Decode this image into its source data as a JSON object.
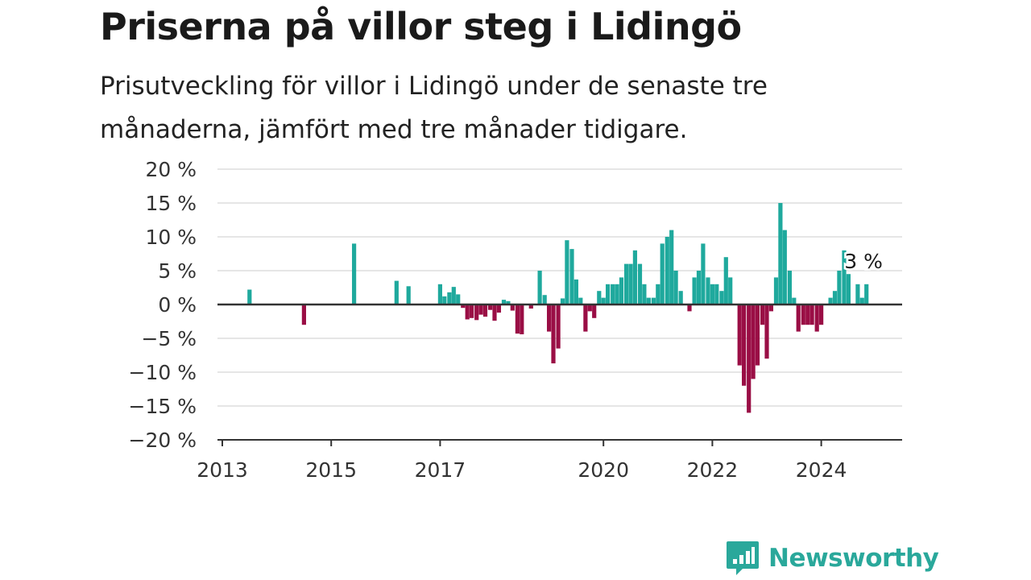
{
  "header": {
    "title": "Priserna på villor steg i Lidingö",
    "subtitle": "Prisutveckling för villor i Lidingö under de senaste tre månaderna, jämfört med tre månader tidigare."
  },
  "brand": {
    "name": "Newsworthy",
    "icon": "newsworthy-logo-icon",
    "color": "#2aa89b"
  },
  "chart_data": {
    "type": "bar",
    "title": "Priserna på villor steg i Lidingö",
    "subtitle": "Prisutveckling för villor i Lidingö under de senaste tre månaderna, jämfört med tre månader tidigare.",
    "ylim": [
      -20,
      20
    ],
    "xlim": [
      2013,
      2025.6
    ],
    "yticks": [
      20,
      15,
      10,
      5,
      0,
      -5,
      -10,
      -15,
      -20
    ],
    "ytick_labels": [
      "20 %",
      "15 %",
      "10 %",
      "5 %",
      "0 %",
      "−5 %",
      "−10 %",
      "−15 %",
      "−20 %"
    ],
    "xticks": [
      2013,
      2015,
      2017,
      2020,
      2022,
      2024
    ],
    "xtick_labels": [
      "2013",
      "2015",
      "2017",
      "2020",
      "2022",
      "2024"
    ],
    "grid": true,
    "colors": {
      "positive": "#1fa99d",
      "negative": "#9a0e45"
    },
    "annotation": {
      "text": "3 %",
      "x": 2024.75,
      "y": 3
    },
    "points": [
      {
        "x": 2013.5,
        "y": 2.2
      },
      {
        "x": 2014.5,
        "y": -3
      },
      {
        "x": 2015.42,
        "y": 9
      },
      {
        "x": 2016.2,
        "y": 3.5
      },
      {
        "x": 2016.42,
        "y": 2.7
      },
      {
        "x": 2017.0,
        "y": 3
      },
      {
        "x": 2017.08,
        "y": 1.2
      },
      {
        "x": 2017.17,
        "y": 1.8
      },
      {
        "x": 2017.25,
        "y": 2.6
      },
      {
        "x": 2017.33,
        "y": 1.5
      },
      {
        "x": 2017.42,
        "y": -0.5
      },
      {
        "x": 2017.5,
        "y": -2.2
      },
      {
        "x": 2017.58,
        "y": -2
      },
      {
        "x": 2017.67,
        "y": -2.3
      },
      {
        "x": 2017.75,
        "y": -1.5
      },
      {
        "x": 2017.83,
        "y": -1.8
      },
      {
        "x": 2017.92,
        "y": -0.8
      },
      {
        "x": 2018.0,
        "y": -2.4
      },
      {
        "x": 2018.08,
        "y": -1.2
      },
      {
        "x": 2018.17,
        "y": 0.7
      },
      {
        "x": 2018.25,
        "y": 0.5
      },
      {
        "x": 2018.33,
        "y": -0.9
      },
      {
        "x": 2018.42,
        "y": -4.3
      },
      {
        "x": 2018.5,
        "y": -4.4
      },
      {
        "x": 2018.67,
        "y": -0.6
      },
      {
        "x": 2018.83,
        "y": 5
      },
      {
        "x": 2018.92,
        "y": 1.4
      },
      {
        "x": 2019.0,
        "y": -4
      },
      {
        "x": 2019.08,
        "y": -8.7
      },
      {
        "x": 2019.17,
        "y": -6.5
      },
      {
        "x": 2019.25,
        "y": 0.9
      },
      {
        "x": 2019.33,
        "y": 9.5
      },
      {
        "x": 2019.42,
        "y": 8.2
      },
      {
        "x": 2019.5,
        "y": 3.7
      },
      {
        "x": 2019.58,
        "y": 1
      },
      {
        "x": 2019.67,
        "y": -4
      },
      {
        "x": 2019.75,
        "y": -1
      },
      {
        "x": 2019.83,
        "y": -2
      },
      {
        "x": 2019.92,
        "y": 2
      },
      {
        "x": 2020.0,
        "y": 1
      },
      {
        "x": 2020.08,
        "y": 3
      },
      {
        "x": 2020.17,
        "y": 3
      },
      {
        "x": 2020.25,
        "y": 3
      },
      {
        "x": 2020.33,
        "y": 4
      },
      {
        "x": 2020.42,
        "y": 6
      },
      {
        "x": 2020.5,
        "y": 6
      },
      {
        "x": 2020.58,
        "y": 8
      },
      {
        "x": 2020.67,
        "y": 6
      },
      {
        "x": 2020.75,
        "y": 3
      },
      {
        "x": 2020.83,
        "y": 1
      },
      {
        "x": 2020.92,
        "y": 1
      },
      {
        "x": 2021.0,
        "y": 3
      },
      {
        "x": 2021.08,
        "y": 9
      },
      {
        "x": 2021.17,
        "y": 10
      },
      {
        "x": 2021.25,
        "y": 11
      },
      {
        "x": 2021.33,
        "y": 5
      },
      {
        "x": 2021.42,
        "y": 2
      },
      {
        "x": 2021.58,
        "y": -1
      },
      {
        "x": 2021.67,
        "y": 4
      },
      {
        "x": 2021.75,
        "y": 5
      },
      {
        "x": 2021.83,
        "y": 9
      },
      {
        "x": 2021.92,
        "y": 4
      },
      {
        "x": 2022.0,
        "y": 3
      },
      {
        "x": 2022.08,
        "y": 3
      },
      {
        "x": 2022.17,
        "y": 2
      },
      {
        "x": 2022.25,
        "y": 7
      },
      {
        "x": 2022.33,
        "y": 4
      },
      {
        "x": 2022.5,
        "y": -9
      },
      {
        "x": 2022.58,
        "y": -12
      },
      {
        "x": 2022.67,
        "y": -16
      },
      {
        "x": 2022.75,
        "y": -11
      },
      {
        "x": 2022.83,
        "y": -9
      },
      {
        "x": 2022.92,
        "y": -3
      },
      {
        "x": 2023.0,
        "y": -8
      },
      {
        "x": 2023.08,
        "y": -1
      },
      {
        "x": 2023.17,
        "y": 4
      },
      {
        "x": 2023.25,
        "y": 15
      },
      {
        "x": 2023.33,
        "y": 11
      },
      {
        "x": 2023.42,
        "y": 5
      },
      {
        "x": 2023.5,
        "y": 1
      },
      {
        "x": 2023.58,
        "y": -4
      },
      {
        "x": 2023.67,
        "y": -3
      },
      {
        "x": 2023.75,
        "y": -3
      },
      {
        "x": 2023.83,
        "y": -3
      },
      {
        "x": 2023.92,
        "y": -4
      },
      {
        "x": 2024.0,
        "y": -3
      },
      {
        "x": 2024.17,
        "y": 1
      },
      {
        "x": 2024.25,
        "y": 2
      },
      {
        "x": 2024.33,
        "y": 5
      },
      {
        "x": 2024.42,
        "y": 8
      },
      {
        "x": 2024.5,
        "y": 4.5
      },
      {
        "x": 2024.67,
        "y": 3
      },
      {
        "x": 2024.75,
        "y": 1
      },
      {
        "x": 2024.83,
        "y": 3
      }
    ]
  }
}
